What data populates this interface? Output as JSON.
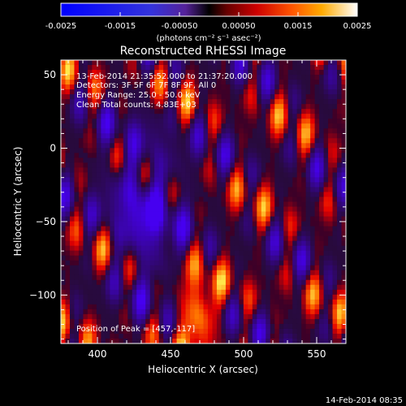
{
  "colorbar": {
    "tick_labels": [
      "-0.0025",
      "-0.0015",
      "-0.00050",
      "0.00050",
      "0.0015",
      "0.0025"
    ],
    "range": [
      -0.0025,
      0.0025
    ],
    "units_label": "(photons cm⁻² s⁻¹ asec⁻²)"
  },
  "info": {
    "time_range": "13-Feb-2014 21:35:52.000 to 21:37:20.000",
    "detectors": "Detectors: 3F 5F 6F 7F 8F 9F, All 0",
    "energy_range": "Energy Range: 25.0 - 50.0 keV",
    "algorithm": "Clean    Total counts: 4.83E+03",
    "peak": "Position of Peak = [457,-117]"
  },
  "timestamp": "14-Feb-2014 08:35",
  "chart_data": {
    "type": "heatmap",
    "title": "Reconstructed RHESSI Image",
    "xlabel": "Heliocentric X (arcsec)",
    "ylabel": "Heliocentric Y (arcsec)",
    "xlim": [
      375,
      570
    ],
    "ylim": [
      -133,
      60
    ],
    "x_ticks": [
      400,
      450,
      500,
      550
    ],
    "y_ticks": [
      50,
      0,
      -50,
      -100
    ],
    "x_tick_labels": [
      "400",
      "450",
      "500",
      "550"
    ],
    "y_tick_labels": [
      "50",
      "0",
      "−50",
      "−100"
    ],
    "colormap": "red-temperature with negative blues",
    "peak_position": [
      457,
      -117
    ]
  }
}
